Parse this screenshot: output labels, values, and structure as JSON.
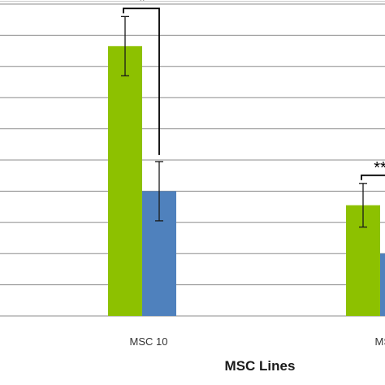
{
  "chart_data": {
    "type": "bar",
    "xlabel": "MSC Lines",
    "ylabel": "",
    "categories": [
      "MSC 10",
      "MSC"
    ],
    "series": [
      {
        "values": [
          8.65,
          3.55
        ],
        "errors": [
          0.95,
          0.7
        ],
        "color": "#8dc100"
      },
      {
        "values": [
          4.0,
          2.0
        ],
        "errors": [
          0.95,
          0.0
        ],
        "color": "#4f81bd"
      }
    ],
    "ylim": [
      0,
      10
    ],
    "grid": true,
    "significance": [
      {
        "category": 0,
        "label": "*"
      },
      {
        "category": 1,
        "label": "**"
      }
    ]
  }
}
